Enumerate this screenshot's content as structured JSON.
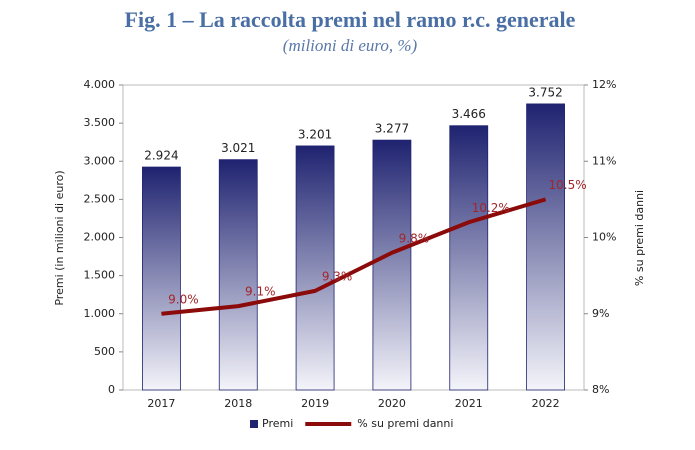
{
  "chart_data": {
    "type": "bar",
    "title": "Fig. 1 – La raccolta premi nel ramo r.c. generale",
    "subtitle": "(milioni di euro, %)",
    "y_label": "Premi (in milioni di euro)",
    "y2_label": "% su premi danni",
    "categories": [
      "2017",
      "2018",
      "2019",
      "2020",
      "2021",
      "2022"
    ],
    "series": [
      {
        "name": "Premi",
        "type": "bar",
        "color": "#1f2370",
        "values": [
          2924,
          3021,
          3201,
          3277,
          3466,
          3752
        ],
        "value_labels": [
          "2.924",
          "3.021",
          "3.201",
          "3.277",
          "3.466",
          "3.752"
        ]
      },
      {
        "name": "% su premi danni",
        "type": "line",
        "axis": "y2",
        "color": "#8b0a0a",
        "values": [
          9.0,
          9.1,
          9.3,
          9.8,
          10.2,
          10.5
        ],
        "value_labels": [
          "9.0%",
          "9.1%",
          "9.3%",
          "9.8%",
          "10.2%",
          "10.5%"
        ]
      }
    ],
    "ylim": [
      0,
      4000
    ],
    "yticks": [
      0,
      500,
      {
        "value": 1000,
        "label": "1.000"
      },
      {
        "value": 1500,
        "label": "1.500"
      },
      {
        "value": 2000,
        "label": "2.000"
      },
      {
        "value": 2500,
        "label": "2.500"
      },
      {
        "value": 3000,
        "label": "3.000"
      },
      {
        "value": 3500,
        "label": "3.500"
      },
      {
        "value": 4000,
        "label": "4.000"
      }
    ],
    "y2lim": [
      8,
      12
    ],
    "y2ticks": [
      {
        "value": 8,
        "label": "8%"
      },
      {
        "value": 9,
        "label": "9%"
      },
      {
        "value": 10,
        "label": "10%"
      },
      {
        "value": 11,
        "label": "11%"
      },
      {
        "value": 12,
        "label": "12%"
      }
    ],
    "legend": "bottom"
  }
}
